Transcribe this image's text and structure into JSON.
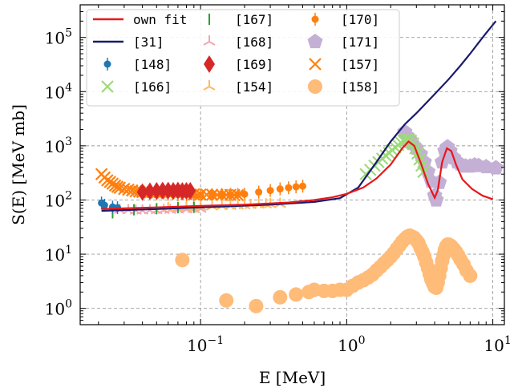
{
  "chart_data": {
    "type": "scatter",
    "xlabel": "E [MeV]",
    "ylabel": "S(E) [MeV mb]",
    "x_scale": "log",
    "y_scale": "log",
    "xlim": [
      0.015,
      12
    ],
    "ylim": [
      0.5,
      400000
    ],
    "grid": true,
    "legend_position": "top-left",
    "x_ticks": [
      {
        "value": 0.1,
        "base": "10",
        "exp": "−1"
      },
      {
        "value": 1,
        "base": "10",
        "exp": "0"
      },
      {
        "value": 10,
        "base": "10",
        "exp": "1"
      }
    ],
    "y_ticks": [
      {
        "value": 1,
        "base": "10",
        "exp": "0"
      },
      {
        "value": 10,
        "base": "10",
        "exp": "1"
      },
      {
        "value": 100,
        "base": "10",
        "exp": "2"
      },
      {
        "value": 1000,
        "base": "10",
        "exp": "3"
      },
      {
        "value": 10000,
        "base": "10",
        "exp": "4"
      },
      {
        "value": 100000,
        "base": "10",
        "exp": "5"
      }
    ],
    "series": [
      {
        "name": "own fit",
        "kind": "line",
        "color": "#e8171b",
        "marker": "line",
        "points": [
          [
            0.021,
            68
          ],
          [
            0.03,
            70
          ],
          [
            0.05,
            73
          ],
          [
            0.1,
            78
          ],
          [
            0.2,
            82
          ],
          [
            0.4,
            90
          ],
          [
            0.6,
            100
          ],
          [
            0.8,
            112
          ],
          [
            1.0,
            130
          ],
          [
            1.3,
            170
          ],
          [
            1.6,
            250
          ],
          [
            2.0,
            450
          ],
          [
            2.4,
            900
          ],
          [
            2.65,
            1200
          ],
          [
            2.9,
            1000
          ],
          [
            3.2,
            500
          ],
          [
            3.6,
            200
          ],
          [
            4.0,
            110
          ],
          [
            4.2,
            150
          ],
          [
            4.5,
            500
          ],
          [
            4.85,
            900
          ],
          [
            5.2,
            800
          ],
          [
            5.6,
            450
          ],
          [
            6.2,
            240
          ],
          [
            7.2,
            160
          ],
          [
            8.5,
            120
          ],
          [
            10.0,
            103
          ]
        ]
      },
      {
        "name": "[31]",
        "kind": "line",
        "color": "#1a1a6e",
        "marker": "line",
        "points": [
          [
            0.021,
            63
          ],
          [
            0.05,
            68
          ],
          [
            0.1,
            73
          ],
          [
            0.3,
            82
          ],
          [
            0.6,
            92
          ],
          [
            0.9,
            108
          ],
          [
            1.2,
            170
          ],
          [
            1.6,
            500
          ],
          [
            2.0,
            1200
          ],
          [
            2.5,
            2500
          ],
          [
            3.0,
            4000
          ],
          [
            4.0,
            9000
          ],
          [
            5.0,
            17000
          ],
          [
            6.0,
            30000
          ],
          [
            7.0,
            50000
          ],
          [
            8.0,
            80000
          ],
          [
            9.0,
            120000
          ],
          [
            10.5,
            200000
          ]
        ]
      },
      {
        "name": "[148]",
        "kind": "scatter",
        "color": "#1f77b4",
        "marker": "dot-err",
        "points": [
          [
            0.021,
            88
          ],
          [
            0.022,
            80
          ],
          [
            0.025,
            74
          ],
          [
            0.027,
            72
          ]
        ]
      },
      {
        "name": "[166]",
        "kind": "scatter",
        "color": "#9dda7a",
        "marker": "x",
        "points": [
          [
            1.35,
            300
          ],
          [
            1.45,
            360
          ],
          [
            1.55,
            430
          ],
          [
            1.65,
            500
          ],
          [
            1.75,
            580
          ],
          [
            1.85,
            660
          ],
          [
            1.95,
            740
          ],
          [
            2.05,
            830
          ],
          [
            2.15,
            930
          ],
          [
            2.25,
            1030
          ],
          [
            2.35,
            1150
          ],
          [
            2.45,
            1250
          ],
          [
            2.55,
            1320
          ],
          [
            2.65,
            1350
          ],
          [
            2.75,
            1250
          ],
          [
            2.85,
            1100
          ],
          [
            2.95,
            900
          ],
          [
            3.05,
            720
          ],
          [
            3.15,
            560
          ],
          [
            3.25,
            430
          ],
          [
            3.35,
            330
          ]
        ]
      },
      {
        "name": "[167]",
        "kind": "scatter",
        "color": "#2ca02c",
        "marker": "vline",
        "points": [
          [
            0.025,
            58
          ],
          [
            0.035,
            66
          ],
          [
            0.05,
            69
          ],
          [
            0.07,
            72
          ],
          [
            0.09,
            73
          ]
        ]
      },
      {
        "name": "[168]",
        "kind": "scatter",
        "color": "#f4a6b0",
        "marker": "tri",
        "points": [
          [
            0.028,
            65
          ],
          [
            0.032,
            64
          ],
          [
            0.036,
            63
          ],
          [
            0.04,
            63
          ],
          [
            0.045,
            64
          ],
          [
            0.05,
            64
          ],
          [
            0.056,
            65
          ],
          [
            0.062,
            65
          ],
          [
            0.07,
            66
          ],
          [
            0.08,
            66
          ],
          [
            0.09,
            67
          ],
          [
            0.1,
            68
          ]
        ]
      },
      {
        "name": "[169]",
        "kind": "scatter",
        "color": "#d62728",
        "marker": "diamond",
        "points": [
          [
            0.04,
            140
          ],
          [
            0.045,
            145
          ],
          [
            0.05,
            148
          ],
          [
            0.055,
            150
          ],
          [
            0.06,
            150
          ],
          [
            0.065,
            148
          ],
          [
            0.07,
            150
          ],
          [
            0.075,
            147
          ],
          [
            0.08,
            148
          ],
          [
            0.085,
            148
          ]
        ]
      },
      {
        "name": "[154]",
        "kind": "scatter",
        "color": "#fdb863",
        "marker": "tri",
        "points": [
          [
            0.06,
            70
          ],
          [
            0.07,
            71
          ],
          [
            0.08,
            72
          ],
          [
            0.09,
            73
          ],
          [
            0.1,
            74
          ],
          [
            0.12,
            75
          ],
          [
            0.14,
            76
          ],
          [
            0.16,
            77
          ],
          [
            0.18,
            78
          ],
          [
            0.2,
            79
          ],
          [
            0.22,
            80
          ],
          [
            0.25,
            81
          ],
          [
            0.28,
            82
          ],
          [
            0.3,
            83
          ],
          [
            0.35,
            84
          ]
        ]
      },
      {
        "name": "[170]",
        "kind": "scatter",
        "color": "#ff7f0e",
        "marker": "dot-err",
        "points": [
          [
            0.05,
            130
          ],
          [
            0.06,
            128
          ],
          [
            0.07,
            125
          ],
          [
            0.08,
            124
          ],
          [
            0.09,
            123
          ],
          [
            0.1,
            124
          ],
          [
            0.12,
            125
          ],
          [
            0.14,
            126
          ],
          [
            0.16,
            126
          ],
          [
            0.18,
            127
          ],
          [
            0.2,
            128
          ],
          [
            0.25,
            140
          ],
          [
            0.3,
            150
          ],
          [
            0.35,
            160
          ],
          [
            0.4,
            168
          ],
          [
            0.45,
            175
          ],
          [
            0.5,
            180
          ]
        ]
      },
      {
        "name": "[171]",
        "kind": "scatter",
        "color": "#c5b0d5",
        "marker": "pentagon",
        "points": [
          [
            2.5,
            1800
          ],
          [
            2.6,
            1500
          ],
          [
            2.7,
            1300
          ],
          [
            2.8,
            1100
          ],
          [
            3.0,
            900
          ],
          [
            3.2,
            700
          ],
          [
            3.4,
            500
          ],
          [
            3.6,
            330
          ],
          [
            3.8,
            220
          ],
          [
            4.0,
            120
          ],
          [
            4.1,
            100
          ],
          [
            4.3,
            210
          ],
          [
            4.5,
            500
          ],
          [
            4.7,
            800
          ],
          [
            4.9,
            950
          ],
          [
            5.1,
            800
          ],
          [
            5.4,
            600
          ],
          [
            5.7,
            500
          ],
          [
            6.0,
            460
          ],
          [
            6.5,
            420
          ],
          [
            7.0,
            420
          ],
          [
            7.5,
            440
          ],
          [
            8.0,
            430
          ],
          [
            9.0,
            410
          ],
          [
            10.5,
            390
          ]
        ]
      },
      {
        "name": "[157]",
        "kind": "scatter",
        "color": "#ff7f0e",
        "marker": "x",
        "points": [
          [
            0.021,
            300
          ],
          [
            0.022,
            260
          ],
          [
            0.023,
            230
          ],
          [
            0.024,
            215
          ],
          [
            0.025,
            200
          ],
          [
            0.026,
            185
          ],
          [
            0.027,
            175
          ],
          [
            0.028,
            168
          ],
          [
            0.03,
            160
          ],
          [
            0.032,
            155
          ],
          [
            0.034,
            150
          ],
          [
            0.036,
            145
          ],
          [
            0.038,
            142
          ],
          [
            0.04,
            140
          ],
          [
            0.045,
            138
          ],
          [
            0.05,
            136
          ],
          [
            0.055,
            134
          ],
          [
            0.06,
            132
          ],
          [
            0.07,
            130
          ],
          [
            0.08,
            128
          ],
          [
            0.09,
            127
          ],
          [
            0.1,
            126
          ],
          [
            0.11,
            125
          ],
          [
            0.12,
            125
          ],
          [
            0.13,
            124
          ],
          [
            0.14,
            124
          ],
          [
            0.15,
            124
          ],
          [
            0.16,
            124
          ],
          [
            0.17,
            123
          ],
          [
            0.18,
            123
          ]
        ]
      },
      {
        "name": "[158]",
        "kind": "scatter",
        "color": "#ffbb78",
        "marker": "circle",
        "points": [
          [
            0.075,
            7.8
          ],
          [
            0.15,
            1.4
          ],
          [
            0.24,
            1.1
          ],
          [
            0.35,
            1.6
          ],
          [
            0.45,
            1.8
          ],
          [
            0.55,
            2.0
          ],
          [
            0.6,
            2.2
          ],
          [
            0.7,
            2.1
          ],
          [
            0.8,
            2.1
          ],
          [
            0.9,
            2.2
          ],
          [
            1.0,
            2.2
          ],
          [
            1.1,
            2.6
          ],
          [
            1.2,
            3.0
          ],
          [
            1.3,
            3.3
          ],
          [
            1.4,
            3.7
          ],
          [
            1.5,
            4.2
          ],
          [
            1.6,
            5.0
          ],
          [
            1.7,
            5.8
          ],
          [
            1.8,
            6.8
          ],
          [
            1.9,
            7.8
          ],
          [
            2.0,
            9.0
          ],
          [
            2.1,
            10.5
          ],
          [
            2.2,
            12.5
          ],
          [
            2.3,
            14.5
          ],
          [
            2.4,
            17
          ],
          [
            2.5,
            19
          ],
          [
            2.6,
            21
          ],
          [
            2.7,
            22
          ],
          [
            2.8,
            21
          ],
          [
            2.9,
            20
          ],
          [
            3.0,
            18
          ],
          [
            3.1,
            16
          ],
          [
            3.2,
            13
          ],
          [
            3.3,
            11
          ],
          [
            3.4,
            9.0
          ],
          [
            3.5,
            7.0
          ],
          [
            3.6,
            5.5
          ],
          [
            3.7,
            4.3
          ],
          [
            3.8,
            3.4
          ],
          [
            3.9,
            2.9
          ],
          [
            4.0,
            2.5
          ],
          [
            4.1,
            2.4
          ],
          [
            4.2,
            3.0
          ],
          [
            4.3,
            4.0
          ],
          [
            4.4,
            5.5
          ],
          [
            4.5,
            7.5
          ],
          [
            4.6,
            9.5
          ],
          [
            4.7,
            12
          ],
          [
            4.8,
            14
          ],
          [
            4.9,
            15
          ],
          [
            5.0,
            15
          ],
          [
            5.1,
            14.5
          ],
          [
            5.2,
            14
          ],
          [
            5.4,
            12.5
          ],
          [
            5.6,
            11
          ],
          [
            5.8,
            9.5
          ],
          [
            6.0,
            8.0
          ],
          [
            6.3,
            6.5
          ],
          [
            6.6,
            5.0
          ],
          [
            7.0,
            4.0
          ]
        ]
      }
    ]
  }
}
